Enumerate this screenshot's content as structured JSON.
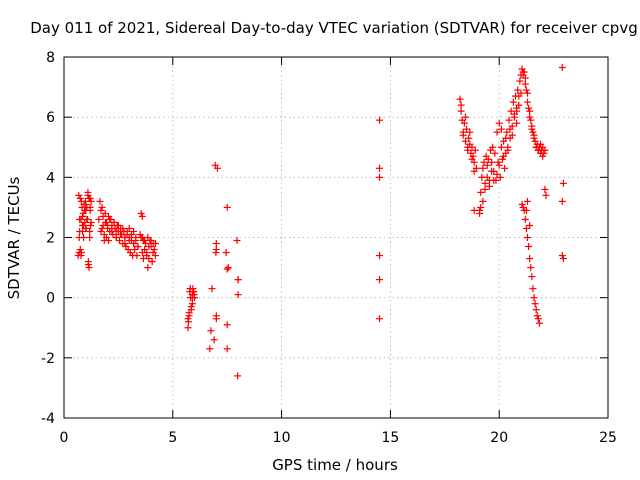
{
  "chart_data": {
    "type": "scatter",
    "title": "Day 011 of 2021, Sidereal Day-to-day VTEC variation (SDTVAR) for receiver cpvg",
    "xlabel": "GPS time / hours",
    "ylabel": "SDTVAR / TECUs",
    "xlim": [
      0,
      25
    ],
    "ylim": [
      -4,
      8
    ],
    "xticks": [
      0,
      5,
      10,
      15,
      20,
      25
    ],
    "yticks": [
      -4,
      -2,
      0,
      2,
      4,
      6,
      8
    ],
    "grid": true,
    "marker": "+",
    "color": "#ff0000",
    "series": [
      {
        "name": "SDTVAR",
        "x": [
          0.65,
          0.7,
          0.72,
          0.75,
          0.78,
          0.8,
          0.83,
          0.85,
          0.88,
          0.9,
          0.92,
          0.95,
          0.98,
          1.0,
          1.02,
          1.05,
          1.08,
          1.1,
          1.12,
          1.15,
          1.18,
          1.2,
          1.22,
          1.25,
          0.68,
          0.72,
          0.75,
          0.8,
          0.85,
          0.9,
          0.95,
          1.0,
          1.05,
          1.1,
          1.15,
          1.2,
          1.25,
          0.7,
          0.78,
          0.85,
          1.0,
          1.12,
          1.18,
          1.2,
          1.6,
          1.65,
          1.7,
          1.75,
          1.8,
          1.85,
          1.9,
          1.95,
          2.0,
          2.05,
          2.1,
          2.15,
          2.2,
          2.25,
          2.3,
          2.35,
          2.4,
          2.45,
          2.5,
          2.55,
          2.6,
          2.65,
          2.7,
          2.75,
          2.8,
          2.85,
          2.9,
          2.95,
          3.0,
          3.05,
          3.1,
          3.15,
          3.2,
          3.25,
          3.3,
          3.35,
          3.4,
          1.7,
          1.8,
          1.9,
          2.0,
          2.1,
          2.2,
          2.3,
          2.4,
          2.5,
          2.6,
          2.7,
          2.8,
          2.9,
          3.0,
          3.1,
          3.2,
          3.3,
          3.4,
          1.75,
          1.85,
          1.95,
          2.05,
          2.2,
          2.4,
          2.6,
          2.8,
          3.0,
          3.2,
          3.5,
          3.55,
          3.6,
          3.65,
          3.7,
          3.75,
          3.8,
          3.85,
          3.9,
          3.95,
          4.0,
          4.05,
          4.1,
          4.15,
          4.2,
          3.6,
          3.7,
          3.8,
          3.9,
          4.0,
          4.1,
          4.2,
          3.65,
          3.85,
          4.05,
          3.55,
          3.6,
          5.7,
          5.75,
          5.8,
          5.85,
          5.9,
          5.95,
          6.0,
          5.72,
          5.78,
          5.85,
          5.92,
          5.98,
          5.75,
          5.82,
          5.9,
          5.96,
          5.7,
          5.8,
          5.9,
          6.7,
          6.75,
          6.8,
          6.9,
          6.95,
          7.0,
          7.0,
          7.0,
          7.05,
          7.0,
          6.98,
          7.5,
          7.55,
          7.5,
          7.45,
          7.5,
          7.5,
          7.95,
          8.0,
          7.98,
          8.0,
          8.0,
          14.5,
          14.5,
          14.5,
          14.5,
          14.5,
          14.5,
          18.2,
          18.25,
          18.3,
          18.35,
          18.4,
          18.45,
          18.5,
          18.55,
          18.6,
          18.65,
          18.7,
          18.75,
          18.8,
          18.85,
          18.9,
          18.95,
          18.25,
          18.35,
          18.45,
          18.55,
          18.65,
          18.75,
          18.85,
          19.1,
          19.15,
          19.2,
          19.25,
          19.3,
          19.35,
          19.4,
          19.45,
          19.5,
          19.55,
          19.6,
          19.65,
          19.7,
          19.75,
          19.8,
          19.15,
          19.25,
          19.35,
          19.45,
          19.55,
          19.65,
          19.75,
          19.85,
          19.9,
          19.95,
          20.0,
          20.05,
          20.1,
          20.15,
          20.2,
          20.25,
          20.3,
          20.35,
          20.4,
          20.45,
          20.5,
          20.55,
          20.6,
          20.65,
          20.7,
          20.75,
          20.8,
          20.85,
          20.9,
          20.95,
          21.0,
          19.9,
          20.0,
          20.1,
          20.2,
          20.3,
          20.4,
          20.5,
          20.6,
          20.7,
          20.8,
          20.9,
          21.0,
          21.05,
          21.1,
          21.15,
          21.2,
          21.25,
          21.3,
          21.35,
          21.4,
          21.45,
          21.5,
          21.55,
          21.6,
          21.65,
          21.7,
          21.75,
          21.8,
          21.85,
          21.9,
          21.95,
          22.0,
          22.05,
          22.1,
          21.1,
          21.2,
          21.3,
          21.4,
          21.5,
          21.6,
          21.7,
          21.8,
          21.9,
          22.0,
          21.05,
          21.1,
          21.15,
          21.2,
          21.25,
          21.3,
          21.35,
          21.4,
          21.45,
          21.5,
          21.55,
          21.6,
          21.65,
          21.7,
          21.75,
          21.8,
          21.85,
          18.85,
          19.1,
          22.1,
          22.15,
          22.9,
          22.95,
          22.9,
          22.9,
          22.95,
          20.8,
          21.3,
          21.25,
          21.4
        ],
        "y": [
          1.4,
          1.5,
          2.2,
          3.3,
          2.6,
          1.5,
          3.0,
          2.2,
          2.8,
          2.0,
          3.1,
          2.5,
          3.2,
          2.9,
          2.3,
          3.0,
          2.6,
          3.5,
          1.2,
          3.3,
          2.2,
          3.0,
          2.4,
          3.2,
          3.4,
          2.6,
          1.6,
          3.2,
          2.7,
          2.4,
          2.9,
          3.1,
          2.6,
          3.4,
          1.0,
          2.9,
          2.5,
          2.0,
          1.4,
          2.4,
          2.3,
          1.1,
          2.0,
          3.3,
          2.6,
          3.2,
          2.2,
          3.0,
          2.4,
          1.9,
          2.8,
          2.5,
          2.3,
          2.7,
          2.2,
          2.6,
          2.4,
          2.1,
          2.5,
          2.3,
          2.0,
          2.4,
          2.2,
          1.9,
          2.3,
          2.1,
          1.8,
          2.2,
          2.0,
          1.7,
          2.1,
          1.6,
          2.0,
          1.5,
          1.9,
          1.4,
          1.8,
          1.6,
          1.9,
          1.4,
          1.7,
          2.9,
          2.7,
          2.5,
          2.4,
          2.6,
          2.3,
          2.5,
          2.2,
          2.4,
          2.1,
          2.3,
          2.0,
          2.2,
          1.9,
          2.1,
          1.8,
          2.0,
          1.7,
          2.3,
          2.1,
          2.0,
          1.9,
          2.2,
          2.0,
          2.1,
          1.8,
          2.3,
          2.2,
          2.1,
          2.8,
          2.0,
          1.9,
          1.6,
          1.8,
          1.5,
          2.0,
          1.3,
          1.9,
          1.7,
          1.2,
          1.8,
          1.6,
          1.4,
          2.7,
          1.9,
          1.4,
          1.7,
          1.9,
          1.5,
          1.8,
          1.3,
          1.0,
          1.2,
          2.0,
          1.5,
          -1.0,
          -0.6,
          0.3,
          -0.3,
          0.1,
          0.2,
          0.0,
          -0.8,
          0.2,
          -0.4,
          0.3,
          0.1,
          -0.5,
          0.0,
          -0.2,
          0.2,
          -0.7,
          0.3,
          0.0,
          -1.7,
          -1.1,
          0.3,
          -1.4,
          4.4,
          1.8,
          1.6,
          -0.6,
          4.3,
          -0.7,
          1.5,
          3.0,
          1.0,
          -0.9,
          1.5,
          -1.7,
          0.95,
          1.9,
          0.6,
          -2.6,
          0.6,
          0.1,
          5.9,
          4.3,
          4.0,
          1.4,
          0.6,
          -0.7,
          6.6,
          6.2,
          5.9,
          5.5,
          5.8,
          5.2,
          5.6,
          5.0,
          5.3,
          5.1,
          4.8,
          5.0,
          4.7,
          4.5,
          4.9,
          4.3,
          6.4,
          5.4,
          6.0,
          4.9,
          5.5,
          4.6,
          4.2,
          2.8,
          3.5,
          4.0,
          3.2,
          4.5,
          3.8,
          4.7,
          4.0,
          4.6,
          3.7,
          4.9,
          4.2,
          5.0,
          3.9,
          4.8,
          3.0,
          4.3,
          3.6,
          4.4,
          3.9,
          4.5,
          4.2,
          3.9,
          5.5,
          4.5,
          5.8,
          4.0,
          5.6,
          4.6,
          5.2,
          4.3,
          4.8,
          5.5,
          5.0,
          5.9,
          5.3,
          6.2,
          5.7,
          6.5,
          6.0,
          6.7,
          6.2,
          6.9,
          6.4,
          7.2,
          6.8,
          4.1,
          4.4,
          5.0,
          4.7,
          5.3,
          4.9,
          5.6,
          5.4,
          6.1,
          6.3,
          6.7,
          7.4,
          7.6,
          7.4,
          7.5,
          7.3,
          6.9,
          6.5,
          6.3,
          6.0,
          5.9,
          5.7,
          5.5,
          5.3,
          5.2,
          5.0,
          5.1,
          4.9,
          5.0,
          4.8,
          4.9,
          5.0,
          4.8,
          4.9,
          7.5,
          7.1,
          6.8,
          6.2,
          5.6,
          5.4,
          5.0,
          4.9,
          5.1,
          4.7,
          3.1,
          3.0,
          2.9,
          2.6,
          2.3,
          2.0,
          1.7,
          1.3,
          1.0,
          0.7,
          0.3,
          0.0,
          -0.2,
          -0.4,
          -0.6,
          -0.7,
          -0.85,
          2.9,
          2.9,
          3.6,
          3.4,
          7.65,
          3.8,
          3.2,
          1.4,
          1.3,
          5.8,
          3.2,
          2.9,
          2.4
        ]
      }
    ]
  }
}
